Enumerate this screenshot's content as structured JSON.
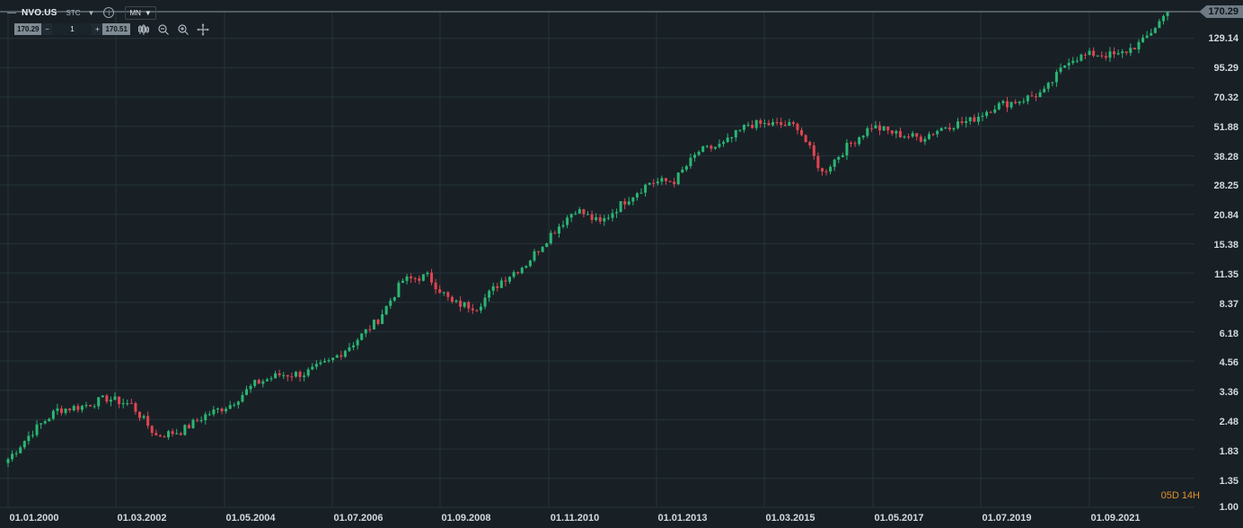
{
  "toolbar": {
    "symbol": "NVO.US",
    "type": "STC",
    "timeframe": "MN",
    "info_icon": "info-icon",
    "caret_icon": "chevron-down-icon"
  },
  "quantity": {
    "bid": "170.29",
    "value": "1",
    "ask": "170.51",
    "minus": "−",
    "plus": "+",
    "tools": [
      "candle-type-icon",
      "zoom-out-icon",
      "zoom-in-icon",
      "crosshair-icon"
    ]
  },
  "price_axis": {
    "current": "170.29",
    "labels": [
      "129.14",
      "95.29",
      "70.32",
      "51.88",
      "38.28",
      "28.25",
      "20.84",
      "15.38",
      "11.35",
      "8.37",
      "6.18",
      "4.56",
      "3.36",
      "2.48",
      "1.83",
      "1.35",
      "1.00"
    ]
  },
  "date_axis": {
    "labels": [
      "01.01.2000",
      "01.03.2002",
      "01.05.2004",
      "01.07.2006",
      "01.09.2008",
      "01.11.2010",
      "01.01.2013",
      "01.03.2015",
      "01.05.2017",
      "01.07.2019",
      "01.09.2021"
    ]
  },
  "countdown": "05D 14H",
  "colors": {
    "background": "#182026",
    "grid": "#26323a",
    "up": "#2bb673",
    "down": "#e04450",
    "axis_text": "#d2dae0",
    "current_line": "#8a979f",
    "countdown": "#e4902a"
  },
  "chart_data": {
    "type": "candlestick",
    "title": "",
    "scale": "log",
    "ylim": [
      1.0,
      170.29
    ],
    "x": [
      "2000-01",
      "2000-06",
      "2001-01",
      "2001-06",
      "2002-01",
      "2002-06",
      "2003-01",
      "2003-06",
      "2004-01",
      "2004-06",
      "2005-01",
      "2005-06",
      "2006-01",
      "2006-06",
      "2007-01",
      "2007-06",
      "2008-01",
      "2008-06",
      "2009-01",
      "2009-06",
      "2010-01",
      "2010-06",
      "2011-01",
      "2011-06",
      "2012-01",
      "2012-06",
      "2013-01",
      "2013-06",
      "2014-01",
      "2014-06",
      "2015-01",
      "2015-06",
      "2016-01",
      "2016-06",
      "2017-01",
      "2017-06",
      "2018-01",
      "2018-06",
      "2019-01",
      "2019-06",
      "2020-01",
      "2020-06",
      "2021-01",
      "2021-06",
      "2022-01",
      "2022-06",
      "2023-01",
      "2023-06"
    ],
    "close": [
      1.65,
      2.2,
      2.75,
      2.85,
      3.1,
      2.9,
      2.1,
      2.2,
      2.6,
      2.9,
      3.6,
      3.95,
      4.0,
      4.5,
      5.5,
      7.0,
      10.5,
      11.0,
      8.3,
      8.0,
      10.5,
      12.5,
      17.0,
      22.0,
      19.0,
      24.0,
      29.0,
      29.5,
      40.0,
      43.0,
      53.0,
      53.0,
      52.0,
      32.0,
      42.0,
      52.0,
      48.0,
      46.0,
      52.0,
      55.0,
      64.0,
      68.0,
      74.0,
      104.0,
      110.0,
      108.0,
      125.0,
      170.29
    ],
    "last_price": 170.29
  }
}
